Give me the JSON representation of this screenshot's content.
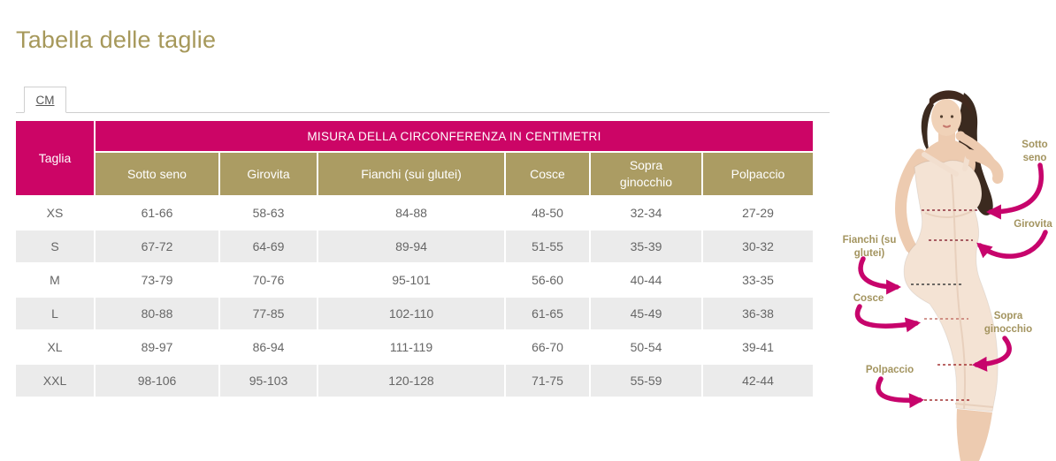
{
  "page": {
    "title": "Tabella delle taglie"
  },
  "tabs": {
    "cm_label": "CM"
  },
  "table": {
    "corner_header": "Taglia",
    "group_header": "MISURA DELLA CIRCONFERENZA IN CENTIMETRI",
    "columns": [
      "Sotto seno",
      "Girovita",
      "Fianchi (sui glutei)",
      "Cosce",
      "Sopra ginocchio",
      "Polpaccio"
    ],
    "rows": [
      {
        "size": "XS",
        "values": [
          "61-66",
          "58-63",
          "84-88",
          "48-50",
          "32-34",
          "27-29"
        ]
      },
      {
        "size": "S",
        "values": [
          "67-72",
          "64-69",
          "89-94",
          "51-55",
          "35-39",
          "30-32"
        ]
      },
      {
        "size": "M",
        "values": [
          "73-79",
          "70-76",
          "95-101",
          "56-60",
          "40-44",
          "33-35"
        ]
      },
      {
        "size": "L",
        "values": [
          "80-88",
          "77-85",
          "102-110",
          "61-65",
          "45-49",
          "36-38"
        ]
      },
      {
        "size": "XL",
        "values": [
          "89-97",
          "86-94",
          "111-119",
          "66-70",
          "50-54",
          "39-41"
        ]
      },
      {
        "size": "XXL",
        "values": [
          "98-106",
          "95-103",
          "120-128",
          "71-75",
          "55-59",
          "42-44"
        ]
      }
    ]
  },
  "figure": {
    "labels": {
      "sotto_seno": "Sotto seno",
      "girovita": "Girovita",
      "fianchi": "Fianchi (su glutei)",
      "cosce": "Cosce",
      "sopra_ginocchio": "Sopra ginocchio",
      "polpaccio": "Polpaccio"
    }
  },
  "colors": {
    "header_magenta": "#CC0566",
    "header_gold": "#AB9C63",
    "title_gold": "#A6985A",
    "arrow_magenta": "#C7046C",
    "stripe_gray": "#EBEBEB",
    "cell_text": "#666666"
  }
}
